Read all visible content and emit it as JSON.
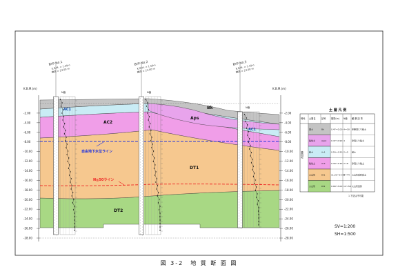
{
  "boreholes": [
    {
      "name": "BYP-No.1",
      "lines": [
        "K.B.M. = 1.50m",
        "標高 = 23.00 m"
      ]
    },
    {
      "name": "BYP-No.2",
      "lines": [
        "K.B.M. = 1.50m",
        "標高 = 23.00 m"
      ]
    },
    {
      "name": "BYP-No.3",
      "lines": [
        "K.B.M. = 1.10m",
        "標高 = 23.00 m"
      ]
    }
  ],
  "axis": {
    "unit_label_left": "K.B.M.(m)",
    "unit_label_right": "K.B.M.(m)",
    "ticks": [
      "-2.00",
      "-4.00",
      "-6.00",
      "-8.00",
      "-10.00",
      "-12.00",
      "-14.00",
      "-16.00",
      "-18.00",
      "-20.00",
      "-22.00",
      "-24.00",
      "-26.00",
      "-28.00"
    ]
  },
  "nvalue_header": "N値",
  "layers": {
    "bk": "Bk",
    "ac1": "AC1",
    "ac2": "AC2",
    "aps": "Aps",
    "dt1": "DT1",
    "dt2": "DT2"
  },
  "annotations": {
    "water_line": "自由地下水位ライン",
    "n50_line": "N≧50ライン"
  },
  "legend": {
    "title": "土 層 凡 例",
    "headers": [
      "時代",
      "土層名",
      "記号",
      "層厚(m)",
      "N値",
      "観 察 記 事"
    ],
    "era": "第四紀",
    "rows": [
      {
        "soil": "盛土",
        "sym": "Bk",
        "thick": "0.47～2.00",
        "n": "4～18",
        "note": "砂礫混じり粘土"
      },
      {
        "soil": "粘性土",
        "sym": "Aps1",
        "thick": "0.47～0.90",
        "n": "4",
        "note": "砂混じり粘土"
      },
      {
        "soil": "粘土",
        "sym": "Ac1",
        "thick": "0.50～3.50",
        "n": "2～5",
        "note": "粘土"
      },
      {
        "soil": "粘性土",
        "sym": "Ac2",
        "thick": "0.30～1.90",
        "n": "2～8",
        "note": "砂混じり粘土"
      },
      {
        "soil": "火山灰",
        "sym": "Dt1",
        "thick": "11.20～14.00",
        "n": "4～44",
        "note": "火山灰質砂質土"
      },
      {
        "soil": "火山灰",
        "sym": "Dt2",
        "thick": "0.90～3.00",
        "n": "11～50",
        "note": "火山灰質砂"
      }
    ],
    "note": "1.下記は不可能"
  },
  "scale": {
    "sv": "SV=1:200",
    "sh": "SH=1:500"
  },
  "caption": "図 3-2　地 質 断 面 図",
  "colors": {
    "bk": "#c4c4c4",
    "ac1": "#c9ecf5",
    "ac2": "#f09ee8",
    "aps": "#e8a4ec",
    "dt1": "#f6c88f",
    "dt2": "#a8d884",
    "water": "#2233dd",
    "n50": "#ee2222"
  }
}
